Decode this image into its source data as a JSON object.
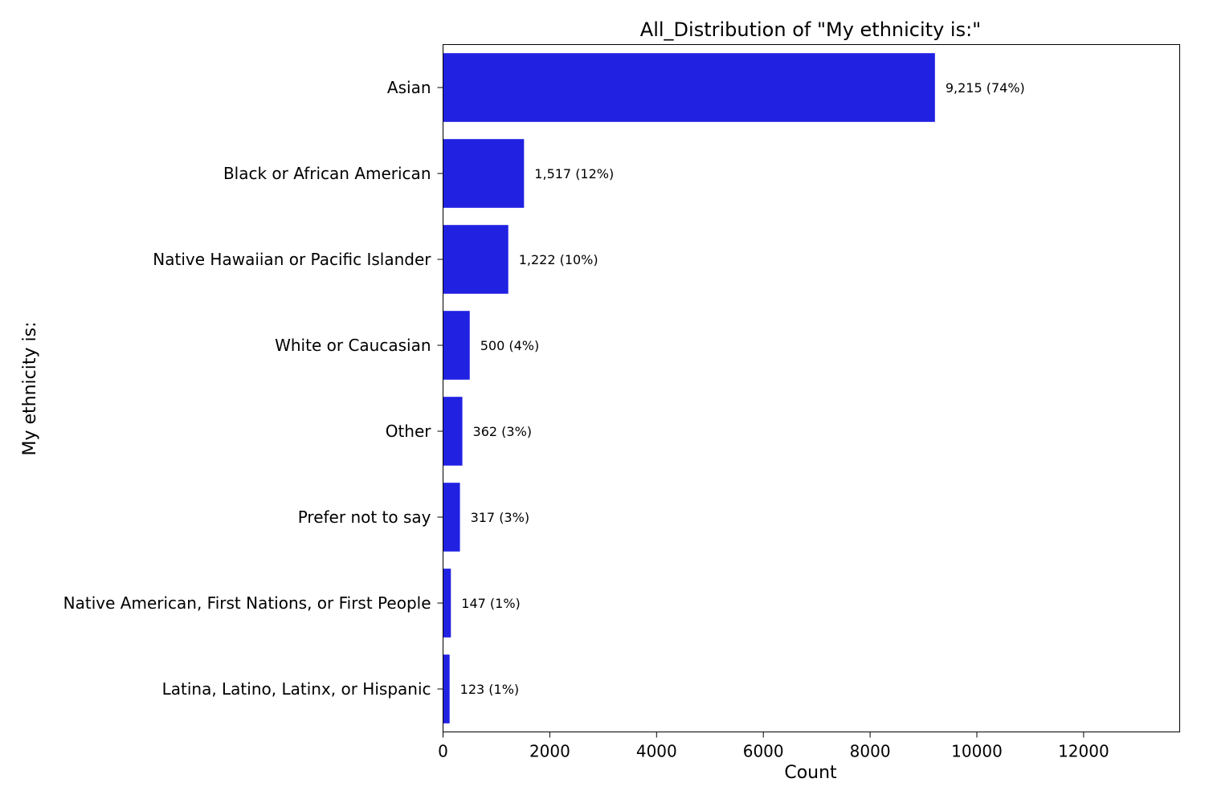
{
  "chart_data": {
    "type": "bar",
    "orientation": "horizontal",
    "title": "All_Distribution of \"My ethnicity is:\"",
    "xlabel": "Count",
    "ylabel": "My ethnicity is:",
    "xlim": [
      0,
      13800
    ],
    "xticks": [
      0,
      2000,
      4000,
      6000,
      8000,
      10000,
      12000
    ],
    "xtick_labels": [
      "0",
      "2000",
      "4000",
      "6000",
      "8000",
      "10000",
      "12000"
    ],
    "grid": false,
    "legend": "none",
    "bar_color": "#2121e2",
    "categories": [
      "Asian",
      "Black or African American",
      "Native Hawaiian or Pacific Islander",
      "White or Caucasian",
      "Other",
      "Prefer not to say",
      "Native American, First Nations, or First People",
      "Latina, Latino, Latinx, or Hispanic"
    ],
    "values": [
      9215,
      1517,
      1222,
      500,
      362,
      317,
      147,
      123
    ],
    "data_labels": [
      "9,215 (74%)",
      "1,517 (12%)",
      "1,222 (10%)",
      "500 (4%)",
      "362 (3%)",
      "317 (3%)",
      "147 (1%)",
      "123 (1%)"
    ]
  }
}
